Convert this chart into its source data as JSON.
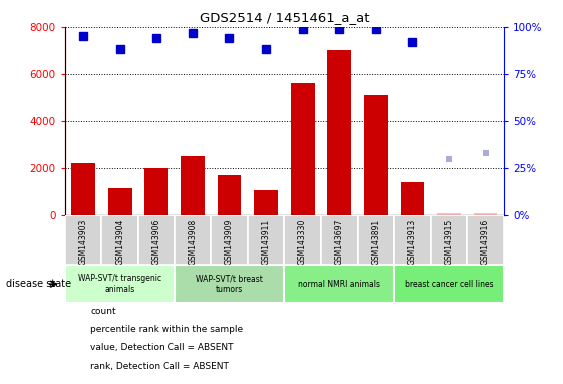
{
  "title": "GDS2514 / 1451461_a_at",
  "samples": [
    "GSM143903",
    "GSM143904",
    "GSM143906",
    "GSM143908",
    "GSM143909",
    "GSM143911",
    "GSM143330",
    "GSM143697",
    "GSM143891",
    "GSM143913",
    "GSM143915",
    "GSM143916"
  ],
  "counts": [
    2200,
    1150,
    2000,
    2500,
    1700,
    1050,
    5600,
    7000,
    5100,
    1400,
    100,
    100
  ],
  "percentile_ranks": [
    95,
    88,
    94,
    97,
    94,
    88,
    99,
    99,
    99,
    92,
    null,
    null
  ],
  "absent_counts": [
    null,
    null,
    null,
    null,
    null,
    null,
    null,
    null,
    null,
    null,
    100,
    100
  ],
  "absent_ranks": [
    null,
    null,
    null,
    null,
    null,
    null,
    null,
    null,
    null,
    null,
    30,
    33
  ],
  "groups": [
    {
      "label": "WAP-SVT/t transgenic\nanimals",
      "start": 0,
      "end": 3
    },
    {
      "label": "WAP-SVT/t breast\ntumors",
      "start": 3,
      "end": 6
    },
    {
      "label": "normal NMRI animals",
      "start": 6,
      "end": 9
    },
    {
      "label": "breast cancer cell lines",
      "start": 9,
      "end": 12
    }
  ],
  "group_colors": [
    "#ccffcc",
    "#aaddaa",
    "#88ee88",
    "#77ee77"
  ],
  "bar_color": "#cc0000",
  "absent_bar_color": "#ffbbbb",
  "rank_color": "#0000cc",
  "absent_rank_color": "#aaaadd",
  "ylim_left": [
    0,
    8000
  ],
  "ylim_right": [
    0,
    100
  ],
  "yticks_left": [
    0,
    2000,
    4000,
    6000,
    8000
  ],
  "yticks_right": [
    0,
    25,
    50,
    75,
    100
  ],
  "sample_box_color": "#d4d4d4",
  "legend_items": [
    {
      "label": "count",
      "color": "#cc0000",
      "type": "bar"
    },
    {
      "label": "percentile rank within the sample",
      "color": "#0000cc",
      "type": "square"
    },
    {
      "label": "value, Detection Call = ABSENT",
      "color": "#ffbbbb",
      "type": "bar"
    },
    {
      "label": "rank, Detection Call = ABSENT",
      "color": "#aaaadd",
      "type": "square"
    }
  ]
}
